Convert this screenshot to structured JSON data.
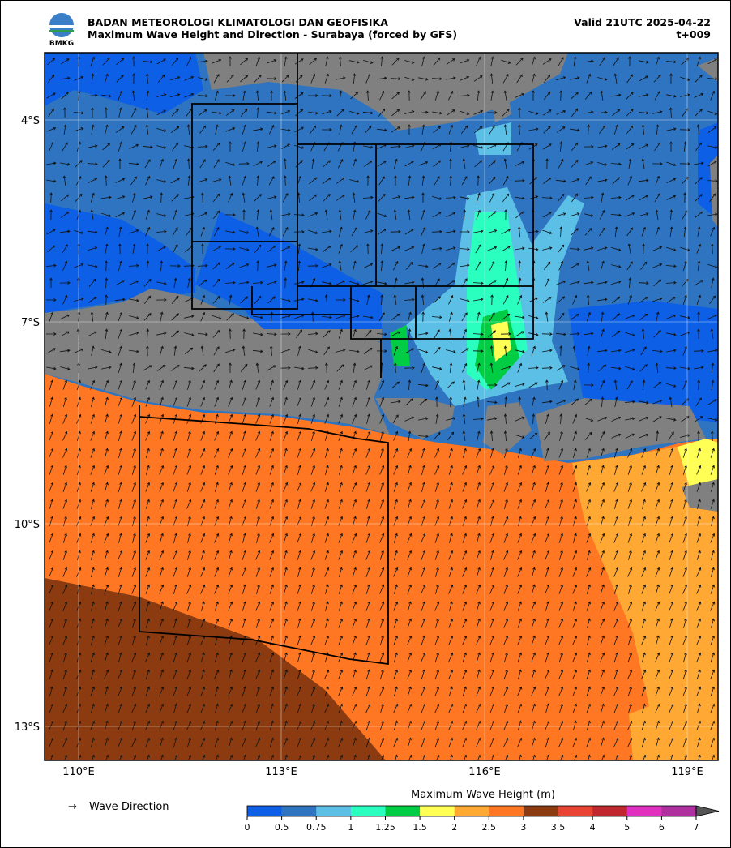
{
  "header": {
    "agency": "BADAN METEOROLOGI KLIMATOLOGI DAN GEOFISIKA",
    "title": "Maximum Wave Height and Direction - Surabaya (forced by GFS)",
    "valid": "Valid 21UTC 2025-04-22",
    "step": "t+009",
    "logo_text": "BMKG"
  },
  "map": {
    "lat_labels": [
      "4°S",
      "7°S",
      "10°S",
      "13°S"
    ],
    "lon_labels": [
      "110°E",
      "113°E",
      "116°E",
      "119°E"
    ]
  },
  "legend": {
    "arrow": "→",
    "label": "Wave Direction"
  },
  "colorbar": {
    "title": "Maximum Wave Height (m)",
    "ticks": [
      "0",
      "0.5",
      "0.75",
      "1",
      "1.25",
      "1.5",
      "2",
      "2.5",
      "3",
      "3.5",
      "4",
      "5",
      "6",
      "7"
    ],
    "colors": [
      "#0d5fe6",
      "#2f74c0",
      "#5cbfe6",
      "#2affc0",
      "#00cc44",
      "#ffff55",
      "#ffa833",
      "#ff7722",
      "#8b3b0f",
      "#e84433",
      "#c0282f",
      "#e030c0",
      "#b030a0"
    ]
  }
}
